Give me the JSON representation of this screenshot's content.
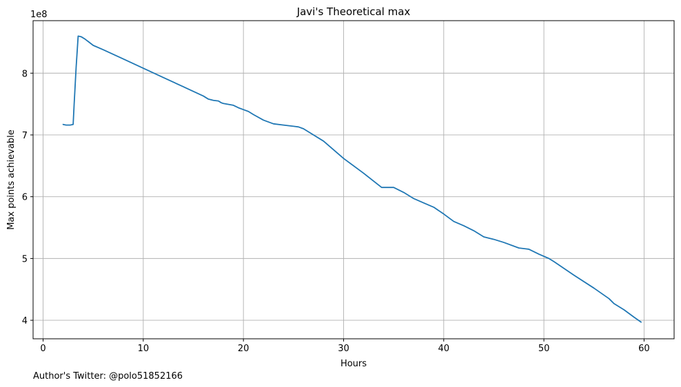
{
  "chart_data": {
    "type": "line",
    "title": "Javi's Theoretical max",
    "xlabel": "Hours",
    "ylabel": "Max points achievable",
    "y_offset_label": "1e8",
    "xlim": [
      -1,
      63
    ],
    "ylim": [
      3.7,
      8.85
    ],
    "xticks": [
      0,
      10,
      20,
      30,
      40,
      50,
      60
    ],
    "yticks": [
      4,
      5,
      6,
      7,
      8
    ],
    "grid": true,
    "series": [
      {
        "color": "#1f77b4",
        "x": [
          2.0,
          2.3,
          2.7,
          3.0,
          3.1,
          3.3,
          3.5,
          3.8,
          4.2,
          4.6,
          5.0,
          6.0,
          8.0,
          10.0,
          12.0,
          14.0,
          16.0,
          16.5,
          17.0,
          17.5,
          17.8,
          18.0,
          19.0,
          19.5,
          20.0,
          20.5,
          21.0,
          22.0,
          23.0,
          24.0,
          24.5,
          25.0,
          25.5,
          26.0,
          26.5,
          28.0,
          30.0,
          32.0,
          33.8,
          35.0,
          36.0,
          37.0,
          38.0,
          39.0,
          40.0,
          41.0,
          42.0,
          43.0,
          44.0,
          45.0,
          46.0,
          47.5,
          48.5,
          49.5,
          50.5,
          51.0,
          53.0,
          55.0,
          56.5,
          57.0,
          58.0,
          59.0,
          59.7
        ],
        "y": [
          7.17,
          7.16,
          7.16,
          7.17,
          7.5,
          8.1,
          8.6,
          8.59,
          8.55,
          8.5,
          8.45,
          8.38,
          8.23,
          8.08,
          7.93,
          7.78,
          7.63,
          7.58,
          7.56,
          7.55,
          7.52,
          7.51,
          7.48,
          7.44,
          7.41,
          7.38,
          7.33,
          7.24,
          7.18,
          7.16,
          7.15,
          7.14,
          7.13,
          7.1,
          7.05,
          6.9,
          6.62,
          6.38,
          6.15,
          6.15,
          6.07,
          5.97,
          5.9,
          5.83,
          5.72,
          5.6,
          5.53,
          5.45,
          5.35,
          5.31,
          5.26,
          5.17,
          5.15,
          5.07,
          5.0,
          4.95,
          4.73,
          4.52,
          4.35,
          4.27,
          4.17,
          4.05,
          3.97
        ]
      }
    ]
  },
  "footer": {
    "credit": "Author's Twitter: @polo51852166"
  }
}
